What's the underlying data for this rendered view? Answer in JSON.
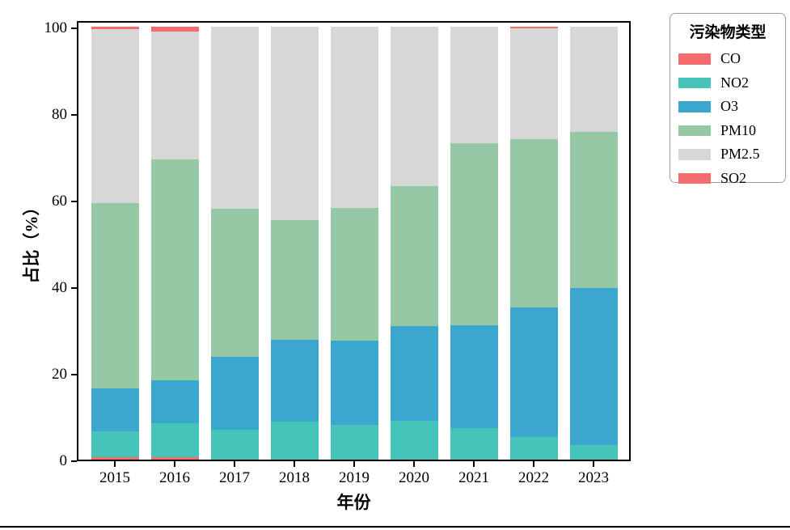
{
  "figure": {
    "background": "#ffffff"
  },
  "chart_data": {
    "type": "bar",
    "stacked": true,
    "xlabel": "年份",
    "ylabel": "占比（%）",
    "categories": [
      "2015",
      "2016",
      "2017",
      "2018",
      "2019",
      "2020",
      "2021",
      "2022",
      "2023"
    ],
    "series": [
      {
        "name": "CO",
        "color": "#f56c6c",
        "values": [
          0.5,
          0.5,
          0.0,
          0.0,
          0.0,
          0.0,
          0.0,
          0.0,
          0.0
        ]
      },
      {
        "name": "NO2",
        "color": "#45c5b9",
        "values": [
          6.0,
          7.9,
          6.9,
          8.7,
          8.1,
          8.9,
          7.3,
          5.3,
          3.3
        ]
      },
      {
        "name": "O3",
        "color": "#3ba6ce",
        "values": [
          10.0,
          10.0,
          16.9,
          19.0,
          19.4,
          22.0,
          23.7,
          29.8,
          36.3
        ]
      },
      {
        "name": "PM10",
        "color": "#95c9a5",
        "values": [
          42.7,
          50.9,
          34.1,
          27.7,
          30.6,
          32.2,
          42.0,
          38.9,
          36.1
        ]
      },
      {
        "name": "PM2.5",
        "color": "#d7d7d7",
        "values": [
          40.2,
          29.5,
          42.1,
          44.6,
          41.9,
          36.9,
          27.0,
          25.7,
          24.3
        ]
      },
      {
        "name": "SO2",
        "color": "#f56c6c",
        "values": [
          0.6,
          1.2,
          0.0,
          0.0,
          0.0,
          0.0,
          0.0,
          0.3,
          0.0
        ]
      }
    ],
    "y_ticks": [
      0,
      20,
      40,
      60,
      80,
      100
    ],
    "ylim": [
      0,
      101.7
    ],
    "grid": false,
    "legend": {
      "title": "污染物类型",
      "position": "upper-right-outside",
      "entries": [
        "CO",
        "NO2",
        "O3",
        "PM10",
        "PM2.5",
        "SO2"
      ]
    }
  }
}
